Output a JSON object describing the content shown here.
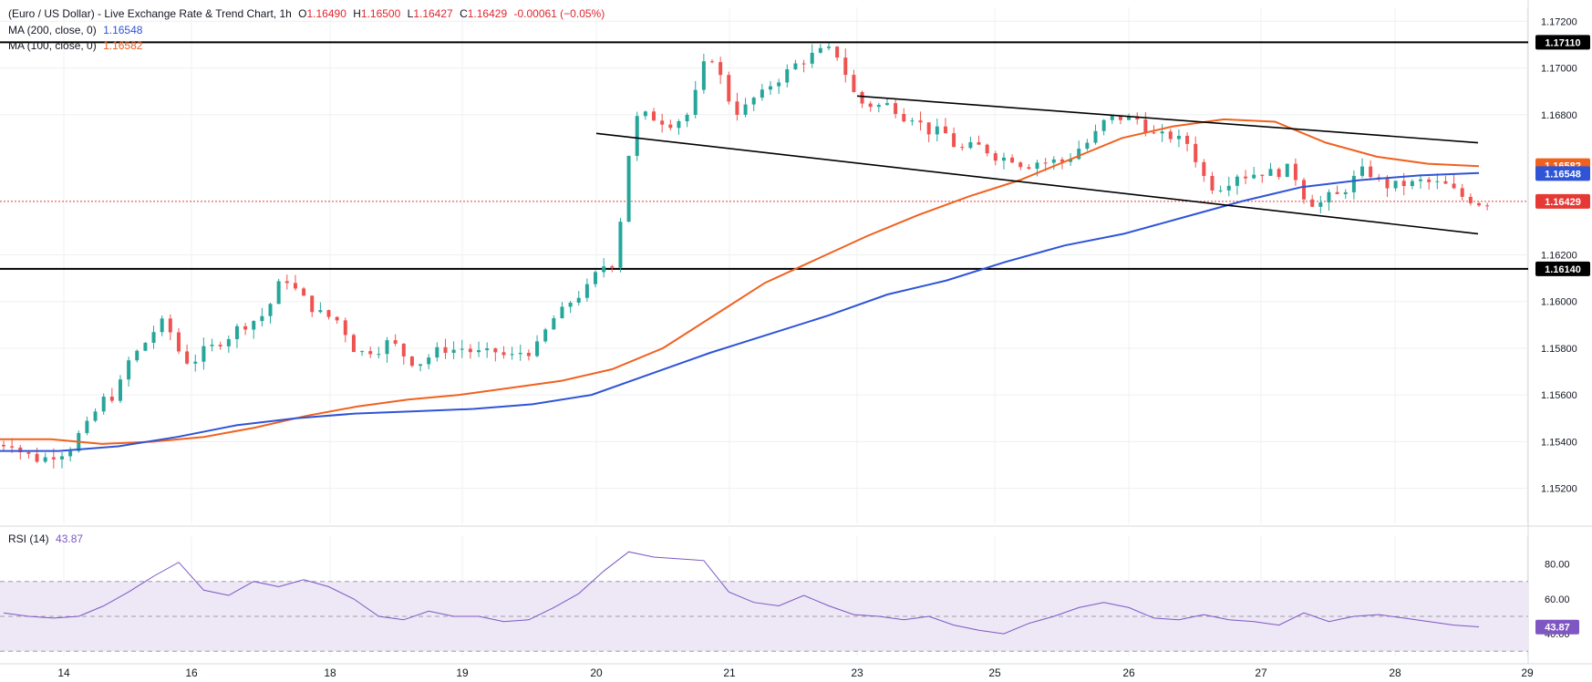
{
  "header": {
    "title": "(Euro / US Dollar) - Live Exchange Rate & Trend Chart, 1h",
    "o_label": "O",
    "o": "1.16490",
    "h_label": "H",
    "h": "1.16500",
    "l_label": "L",
    "l": "1.16427",
    "c_label": "C",
    "c": "1.16429",
    "change": "-0.00061 (−0.05%)",
    "ma200_label": "MA (200, close, 0)",
    "ma200_value": "1.16548",
    "ma100_label": "MA (100, close, 0)",
    "ma100_value": "1.16582"
  },
  "rsi_panel": {
    "label": "RSI (14)",
    "value": "43.87"
  },
  "colors": {
    "up": "#26a69a",
    "down": "#ef5350",
    "ma200": "#2f54d6",
    "ma100": "#f0611e",
    "rsi": "#7e57c2",
    "rsi_band": "#ede7f6",
    "price_line": "#e53935",
    "level": "#000000",
    "trendline": "#000000"
  },
  "chart_data": [
    {
      "type": "candlestick",
      "title": "(Euro / US Dollar) - Live Exchange Rate & Trend Chart, 1h",
      "x_ticks": [
        "14",
        "16",
        "18",
        "19",
        "20",
        "21",
        "23",
        "25",
        "26",
        "27",
        "28",
        "29"
      ],
      "y_ticks": [
        "1.15200",
        "1.15400",
        "1.15600",
        "1.15800",
        "1.16000",
        "1.16200",
        "1.16800",
        "1.17000",
        "1.17200"
      ],
      "ylim": [
        1.1505,
        1.1726
      ],
      "grid": true,
      "closes_sampled": [
        1.154,
        1.1533,
        1.1536,
        1.1546,
        1.156,
        1.1578,
        1.159,
        1.1575,
        1.158,
        1.1588,
        1.1594,
        1.161,
        1.1598,
        1.1592,
        1.1578,
        1.1582,
        1.1575,
        1.1578,
        1.158,
        1.1577,
        1.1576,
        1.158,
        1.1595,
        1.1605,
        1.1617,
        1.1678,
        1.1678,
        1.168,
        1.1705,
        1.1682,
        1.1688,
        1.1698,
        1.1705,
        1.1706,
        1.1685,
        1.1684,
        1.168,
        1.1672,
        1.1665,
        1.1665,
        1.1662,
        1.166,
        1.166,
        1.1668,
        1.1678,
        1.1678,
        1.167,
        1.1668,
        1.165,
        1.1655,
        1.1656,
        1.1656,
        1.1643,
        1.1645,
        1.1655,
        1.165,
        1.165,
        1.165,
        1.1645,
        1.1643
      ],
      "horizontal_levels": [
        {
          "label": "1.17110",
          "value": 1.1711
        },
        {
          "label": "1.16140",
          "value": 1.1614
        }
      ],
      "trendlines": [
        {
          "from": [
            "23",
            1.1688
          ],
          "to": [
            "29",
            1.1668
          ]
        },
        {
          "from": [
            "20",
            1.1672
          ],
          "to": [
            "29",
            1.1629
          ]
        }
      ],
      "price_tags": [
        {
          "label": "1.16582",
          "value": 1.16582,
          "series": "MA (100, close, 0)"
        },
        {
          "label": "1.16548",
          "value": 1.16548,
          "series": "MA (200, close, 0)"
        },
        {
          "label": "1.16429",
          "value": 1.16429,
          "series": "Last price"
        }
      ],
      "series": [
        {
          "name": "MA (100, close, 0)",
          "color": "#f0611e",
          "values": [
            1.1541,
            1.1541,
            1.1539,
            1.154,
            1.1542,
            1.1546,
            1.1551,
            1.1555,
            1.1558,
            1.156,
            1.1563,
            1.1566,
            1.1571,
            1.158,
            1.1594,
            1.1608,
            1.1618,
            1.1628,
            1.1637,
            1.1645,
            1.1652,
            1.1661,
            1.167,
            1.1675,
            1.1678,
            1.1677,
            1.1668,
            1.1662,
            1.1659,
            1.1658
          ]
        },
        {
          "name": "MA (200, close, 0)",
          "color": "#2f54d6",
          "values": [
            1.1536,
            1.1536,
            1.1538,
            1.1542,
            1.1547,
            1.155,
            1.1552,
            1.1553,
            1.1554,
            1.1556,
            1.156,
            1.1569,
            1.1578,
            1.1586,
            1.1594,
            1.1603,
            1.1609,
            1.1617,
            1.1624,
            1.1629,
            1.1636,
            1.1643,
            1.1649,
            1.1652,
            1.1654,
            1.1655
          ]
        }
      ]
    },
    {
      "type": "line",
      "title": "RSI (14)",
      "ylim": [
        27,
        96
      ],
      "y_ticks": [
        "40.00",
        "60.00",
        "80.00"
      ],
      "band": [
        30,
        70
      ],
      "midline": 50,
      "series": [
        {
          "name": "RSI (14)",
          "color": "#7e57c2",
          "values": [
            52,
            50,
            49,
            50,
            56,
            64,
            73,
            81,
            65,
            62,
            70,
            67,
            71,
            67,
            60,
            50,
            48,
            53,
            50,
            50,
            47,
            48,
            55,
            63,
            76,
            87,
            84,
            83,
            82,
            64,
            58,
            56,
            62,
            56,
            51,
            50,
            48,
            50,
            45,
            42,
            40,
            46,
            50,
            55,
            58,
            55,
            49,
            48,
            51,
            48,
            47,
            45,
            52,
            47,
            50,
            51,
            49,
            47,
            45,
            44
          ]
        }
      ]
    }
  ]
}
